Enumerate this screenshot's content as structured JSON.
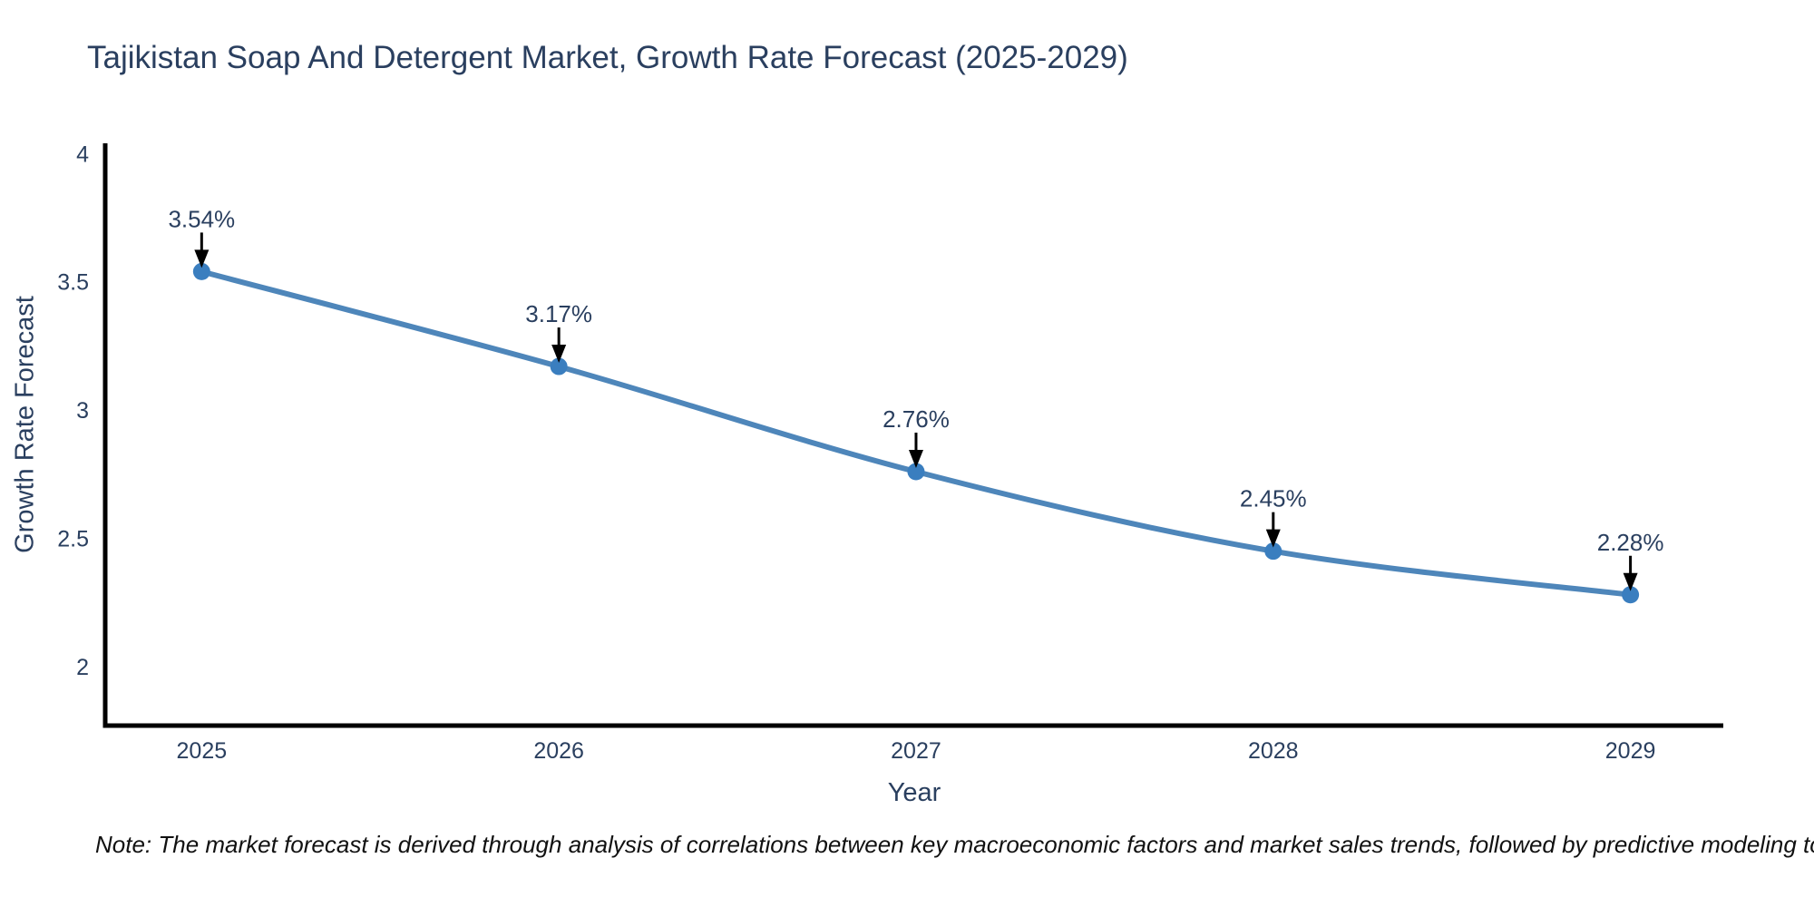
{
  "header": {
    "title": "Tajikistan Soap And Detergent Market, Growth Rate Forecast (2025-2029)"
  },
  "footnote": {
    "text": "Note: The market forecast is derived through analysis of correlations between key macroeconomic factors and market sales trends, followed by predictive modeling to project future sales"
  },
  "chart_data": {
    "type": "line",
    "title": "Tajikistan Soap And Detergent Market, Growth Rate Forecast (2025-2029)",
    "xlabel": "Year",
    "ylabel": "Growth Rate Forecast",
    "x": [
      2025,
      2026,
      2027,
      2028,
      2029
    ],
    "y": [
      3.54,
      3.17,
      2.76,
      2.45,
      2.28
    ],
    "point_labels": [
      "3.54%",
      "3.17%",
      "2.76%",
      "2.45%",
      "2.28%"
    ],
    "xticks": [
      2025,
      2026,
      2027,
      2028,
      2029
    ],
    "yticks": [
      2,
      2.5,
      3,
      3.5,
      4
    ],
    "xlim": [
      2024.73,
      2029.26
    ],
    "ylim": [
      1.77,
      4.04
    ],
    "grid": false,
    "legend": false,
    "line_shape": "spline",
    "marker_diameter": 19,
    "colors": {
      "line": "#4e86ba",
      "marker": "#3a7ebf",
      "axis": "#000000",
      "tick_text": "#2a3f5f",
      "annotation_text": "#2a3f5f",
      "annotation_arrow": "#000000",
      "title_text": "#2a3f5f",
      "note_text": "#111111",
      "background": "#ffffff"
    }
  }
}
